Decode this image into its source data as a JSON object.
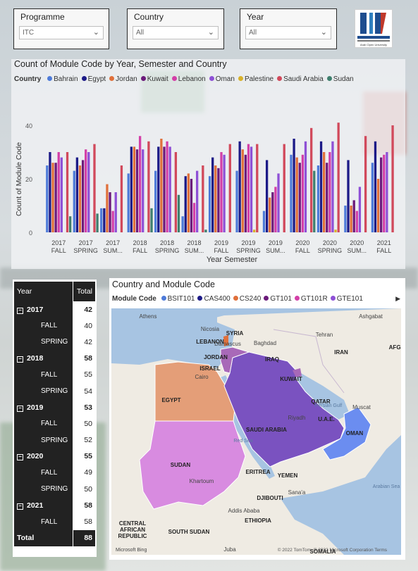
{
  "filters": [
    {
      "label": "Programme",
      "value": "ITC"
    },
    {
      "label": "Country",
      "value": "All"
    },
    {
      "label": "Year",
      "value": "All"
    }
  ],
  "logo": {
    "latin": "AOU",
    "caption": "Arab Open University"
  },
  "chart": {
    "title": "Count of Module Code by Year, Semester and Country",
    "legend_title": "Country"
  },
  "chart_data": {
    "type": "bar",
    "title": "Count of Module Code by Year, Semester and Country",
    "xlabel": "Year Semester",
    "ylabel": "Count of Module Code",
    "ylim": [
      0,
      45
    ],
    "yticks": [
      0,
      20,
      40
    ],
    "grid": false,
    "legend": "top-left",
    "categories": [
      [
        "2017",
        "FALL"
      ],
      [
        "2017",
        "SPRING"
      ],
      [
        "2017",
        "SUM..."
      ],
      [
        "2018",
        "FALL"
      ],
      [
        "2018",
        "SPRING"
      ],
      [
        "2018",
        "SUM..."
      ],
      [
        "2019",
        "FALL"
      ],
      [
        "2019",
        "SPRING"
      ],
      [
        "2019",
        "SUM..."
      ],
      [
        "2020",
        "FALL"
      ],
      [
        "2020",
        "SPRING"
      ],
      [
        "2020",
        "SUM..."
      ],
      [
        "2021",
        "FALL"
      ]
    ],
    "series": [
      {
        "name": "Bahrain",
        "color": "#4e7bd9",
        "values": [
          25,
          23,
          9,
          22,
          23,
          6,
          21,
          23,
          8,
          29,
          25,
          10,
          26
        ]
      },
      {
        "name": "Egypt",
        "color": "#1c1a87",
        "values": [
          30,
          28,
          9,
          32,
          32,
          21,
          28,
          34,
          27,
          35,
          34,
          27,
          34
        ]
      },
      {
        "name": "Jordan",
        "color": "#e0703b",
        "values": [
          26,
          25,
          18,
          32,
          35,
          22,
          25,
          31,
          13,
          28,
          30,
          10,
          20
        ]
      },
      {
        "name": "Kuwait",
        "color": "#6b1a7a",
        "values": [
          26,
          27,
          15,
          31,
          32,
          20,
          24,
          29,
          15,
          26,
          26,
          12,
          28
        ]
      },
      {
        "name": "Lebanon",
        "color": "#d33fa7",
        "values": [
          30,
          31,
          8,
          36,
          34,
          11,
          30,
          33,
          17,
          29,
          30,
          8,
          29
        ]
      },
      {
        "name": "Oman",
        "color": "#8e50d6",
        "values": [
          28,
          30,
          15,
          31,
          32,
          23,
          29,
          32,
          22,
          34,
          34,
          17,
          30
        ]
      },
      {
        "name": "Palestine",
        "color": "#d8b12a",
        "values": [
          0,
          0,
          0,
          0,
          0,
          0,
          0,
          1,
          0,
          0,
          1,
          0,
          0
        ]
      },
      {
        "name": "Saudi Arabia",
        "color": "#d1495b",
        "values": [
          30,
          33,
          25,
          34,
          30,
          25,
          33,
          33,
          33,
          39,
          41,
          36,
          40
        ]
      },
      {
        "name": "Sudan",
        "color": "#3f7f6e",
        "values": [
          6,
          7,
          0,
          9,
          14,
          1,
          0,
          0,
          0,
          23,
          0,
          0,
          0
        ]
      }
    ]
  },
  "matrix": {
    "headers": {
      "year": "Year",
      "total": "Total"
    },
    "rows": [
      {
        "type": "year",
        "label": "2017",
        "value": "42"
      },
      {
        "type": "sem",
        "label": "FALL",
        "value": "40"
      },
      {
        "type": "sem",
        "label": "SPRING",
        "value": "42"
      },
      {
        "type": "year",
        "label": "2018",
        "value": "58"
      },
      {
        "type": "sem",
        "label": "FALL",
        "value": "55"
      },
      {
        "type": "sem",
        "label": "SPRING",
        "value": "54"
      },
      {
        "type": "year",
        "label": "2019",
        "value": "53"
      },
      {
        "type": "sem",
        "label": "FALL",
        "value": "50"
      },
      {
        "type": "sem",
        "label": "SPRING",
        "value": "52"
      },
      {
        "type": "year",
        "label": "2020",
        "value": "55"
      },
      {
        "type": "sem",
        "label": "FALL",
        "value": "49"
      },
      {
        "type": "sem",
        "label": "SPRING",
        "value": "50"
      },
      {
        "type": "year",
        "label": "2021",
        "value": "58"
      },
      {
        "type": "sem",
        "label": "FALL",
        "value": "58"
      }
    ],
    "total": {
      "label": "Total",
      "value": "88"
    }
  },
  "map": {
    "title": "Country and Module Code",
    "legend_title": "Module Code",
    "legend": [
      {
        "name": "BSIT101",
        "color": "#4e7bd9"
      },
      {
        "name": "CAS400",
        "color": "#1c1a87"
      },
      {
        "name": "CS240",
        "color": "#e0703b"
      },
      {
        "name": "GT101",
        "color": "#6b1a7a"
      },
      {
        "name": "GT101R",
        "color": "#d33fa7"
      },
      {
        "name": "GTE101",
        "color": "#8e50d6"
      }
    ],
    "countries": [
      "SYRIA",
      "LEBANON",
      "JORDAN",
      "ISRAEL",
      "IRAQ",
      "IRAN",
      "KUWAIT",
      "QATAR",
      "U.A.E.",
      "OMAN",
      "SAUDI ARABIA",
      "EGYPT",
      "SUDAN",
      "ERITREA",
      "YEMEN",
      "DJIBOUTI",
      "ETHIOPIA",
      "SOUTH SUDAN",
      "CENTRAL AFRICAN REPUBLIC",
      "AFGH",
      "SOMALIA"
    ],
    "cities": [
      "Athens",
      "Nicosia",
      "Damascus",
      "Baghdad",
      "Tehran",
      "Ashgabat",
      "Cairo",
      "Riyadh",
      "Muscat",
      "Khartoum",
      "Sana'a",
      "Addis Ababa",
      "Juba"
    ],
    "water": [
      "Red Sea",
      "Persian Gulf",
      "Arabian Sea"
    ],
    "attribution": "© 2022 TomTom, © 2022 Microsoft Corporation  Terms",
    "provider": "Microsoft Bing"
  }
}
